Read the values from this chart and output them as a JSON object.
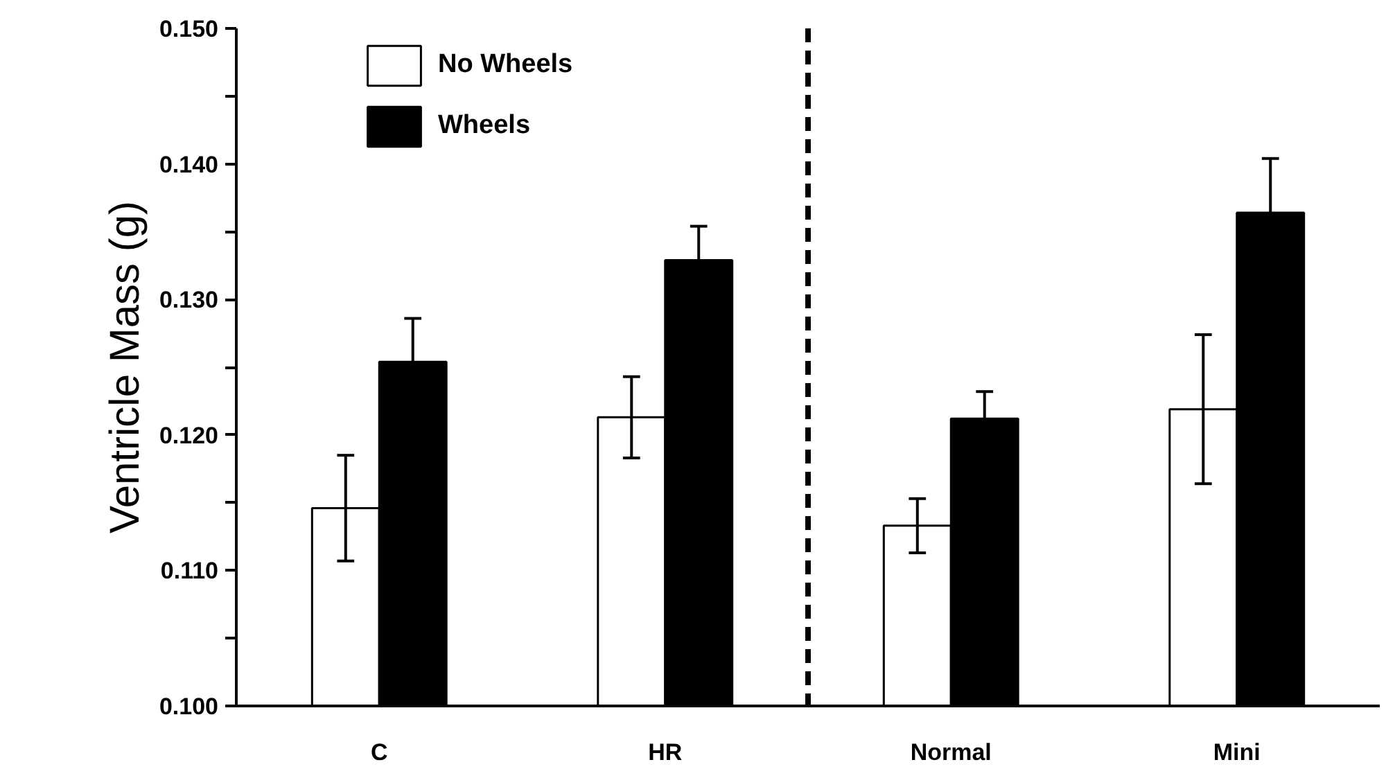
{
  "chart_data": {
    "type": "bar",
    "ylabel": "Ventricle Mass (g)",
    "categories": [
      "C",
      "HR",
      "Normal",
      "Mini"
    ],
    "series": [
      {
        "name": "No Wheels",
        "color": "#ffffff",
        "values": [
          0.1146,
          0.1213,
          0.1133,
          0.1219
        ],
        "errors": [
          0.0039,
          0.003,
          0.002,
          0.0055
        ]
      },
      {
        "name": "Wheels",
        "color": "#000000",
        "values": [
          0.1254,
          0.1329,
          0.1212,
          0.1364
        ],
        "errors": [
          0.0032,
          0.0025,
          0.002,
          0.004
        ]
      }
    ],
    "ylim": [
      0.1,
      0.15
    ],
    "yticks": [
      {
        "value": 0.1,
        "label": "0.100"
      },
      {
        "value": 0.105,
        "label": null
      },
      {
        "value": 0.11,
        "label": "0.110"
      },
      {
        "value": 0.115,
        "label": null
      },
      {
        "value": 0.12,
        "label": "0.120"
      },
      {
        "value": 0.125,
        "label": null
      },
      {
        "value": 0.13,
        "label": "0.130"
      },
      {
        "value": 0.135,
        "label": null
      },
      {
        "value": 0.14,
        "label": "0.140"
      },
      {
        "value": 0.145,
        "label": null
      },
      {
        "value": 0.15,
        "label": "0.150"
      }
    ],
    "legend": "top left",
    "grid": false
  }
}
